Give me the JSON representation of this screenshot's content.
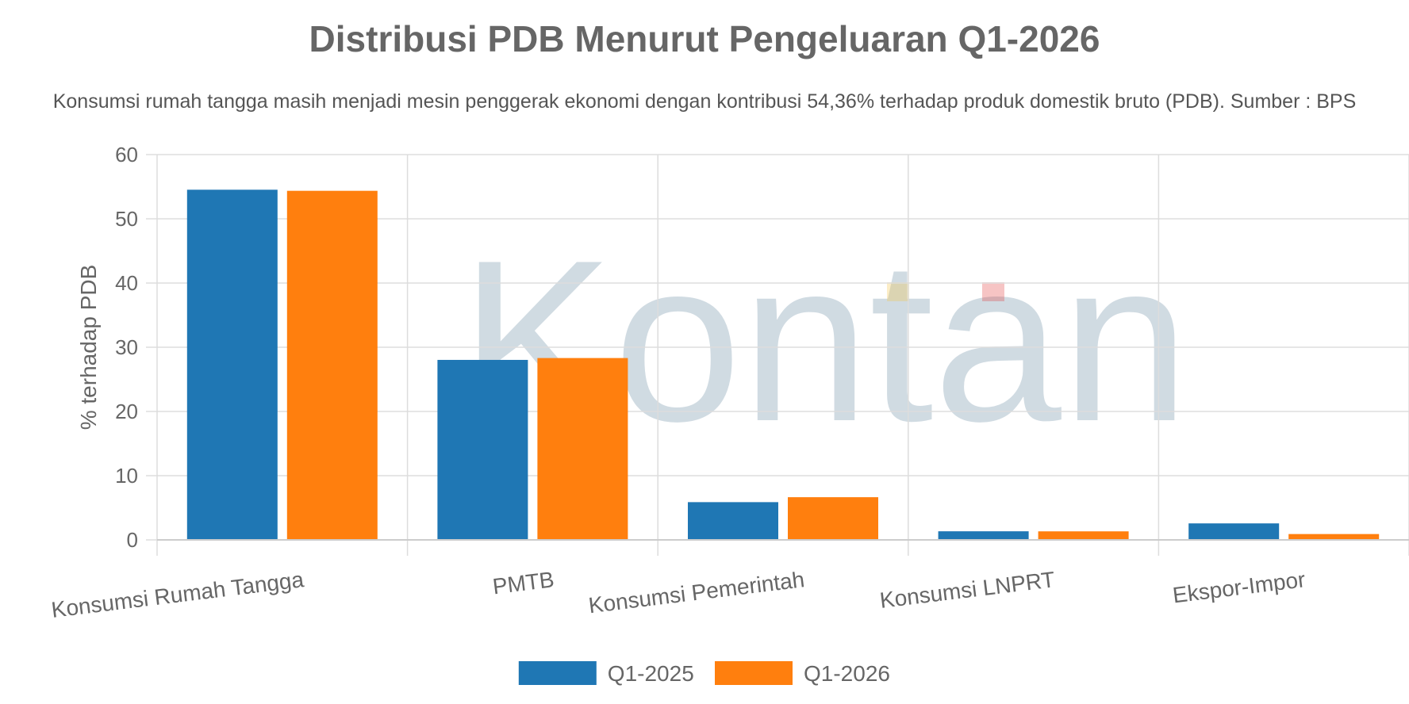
{
  "chart_data": {
    "type": "bar",
    "title": "Distribusi PDB Menurut Pengeluaran Q1-2026",
    "subtitle": "Konsumsi rumah tangga masih menjadi mesin penggerak ekonomi dengan kontribusi 54,36% terhadap produk domestik bruto (PDB). Sumber : BPS",
    "ylabel": "% terhadap PDB",
    "ylim": [
      0,
      60
    ],
    "yticks": [
      0,
      10,
      20,
      30,
      40,
      50,
      60
    ],
    "categories": [
      "Konsumsi Rumah Tangga",
      "PMTB",
      "Konsumsi Pemerintah",
      "Konsumsi LNPRT",
      "Ekspor-Impor"
    ],
    "series": [
      {
        "name": "Q1-2025",
        "color": "#1f77b4",
        "values": [
          54.53,
          28.03,
          5.88,
          1.34,
          2.57
        ]
      },
      {
        "name": "Q1-2026",
        "color": "#ff7f0e",
        "values": [
          54.36,
          28.32,
          6.65,
          1.33,
          0.91
        ]
      }
    ],
    "legend_position": "bottom-center",
    "grid": true,
    "watermark": "Kontan"
  }
}
